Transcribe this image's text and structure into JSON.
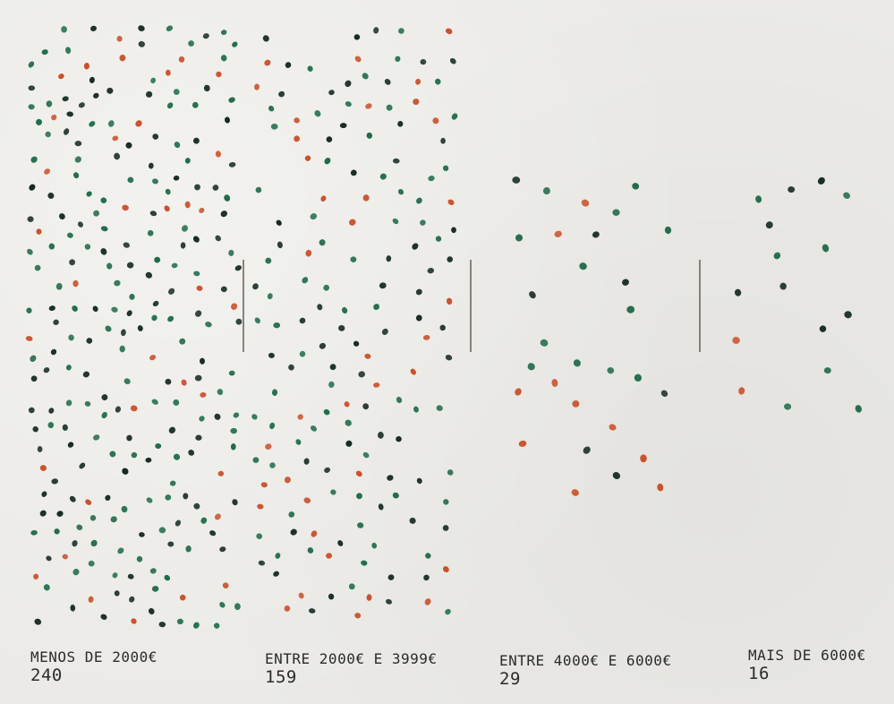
{
  "chart_data": {
    "type": "scatter",
    "subtype": "dot-count",
    "title": "",
    "xlabel": "",
    "ylabel": "",
    "grid": false,
    "legend": "none",
    "colors": {
      "dark": "#152a20",
      "green": "#1f6b4a",
      "orange": "#c8502a",
      "divider": "#4a3a35",
      "text": "#2b2b2b"
    },
    "categories": [
      "MENOS DE 2000€",
      "ENTRE 2000€ E 3999€",
      "ENTRE 4000€ E 6000€",
      "MAIS DE 6000€"
    ],
    "values": [
      240,
      159,
      29,
      16
    ],
    "labels": [
      {
        "category": "MENOS DE 2000€",
        "count": "240"
      },
      {
        "category": "ENTRE 2000€ E 3999€",
        "count": "159"
      },
      {
        "category": "ENTRE 4000€ E 6000€",
        "count": "29"
      },
      {
        "category": "MAIS DE 6000€",
        "count": "16"
      }
    ]
  }
}
